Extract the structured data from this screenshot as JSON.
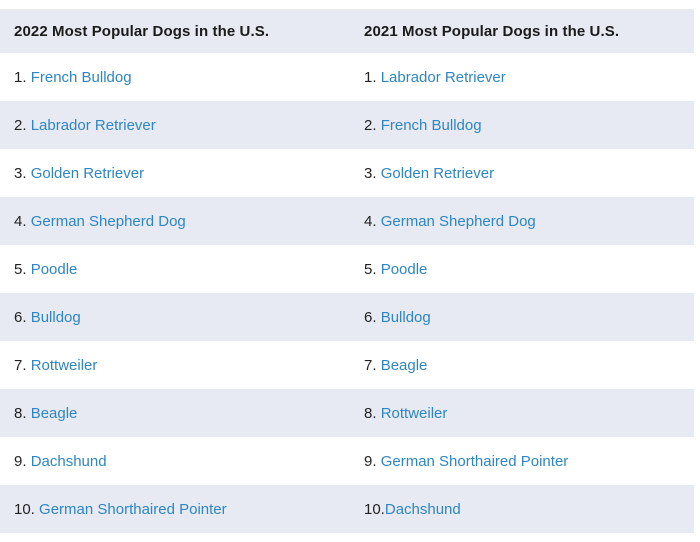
{
  "table": {
    "columns": [
      {
        "title": "2022 Most Popular Dogs in the U.S."
      },
      {
        "title": "2021 Most Popular Dogs in the U.S."
      }
    ],
    "rows": [
      {
        "left_num": "1. ",
        "left_breed": "French Bulldog",
        "right_num": "1. ",
        "right_breed": "Labrador Retriever"
      },
      {
        "left_num": "2. ",
        "left_breed": "Labrador Retriever",
        "right_num": "2. ",
        "right_breed": "French Bulldog"
      },
      {
        "left_num": "3. ",
        "left_breed": "Golden Retriever",
        "right_num": "3. ",
        "right_breed": "Golden Retriever"
      },
      {
        "left_num": "4. ",
        "left_breed": "German Shepherd Dog",
        "right_num": "4. ",
        "right_breed": "German Shepherd Dog"
      },
      {
        "left_num": "5. ",
        "left_breed": "Poodle",
        "right_num": "5. ",
        "right_breed": "Poodle"
      },
      {
        "left_num": "6. ",
        "left_breed": "Bulldog",
        "right_num": "6. ",
        "right_breed": "Bulldog"
      },
      {
        "left_num": "7. ",
        "left_breed": "Rottweiler",
        "right_num": "7. ",
        "right_breed": "Beagle"
      },
      {
        "left_num": "8. ",
        "left_breed": "Beagle",
        "right_num": "8. ",
        "right_breed": "Rottweiler"
      },
      {
        "left_num": "9. ",
        "left_breed": "Dachshund",
        "right_num": "9. ",
        "right_breed": "German Shorthaired Pointer"
      },
      {
        "left_num": "10. ",
        "left_breed": "German Shorthaired Pointer",
        "right_num": "10.",
        "right_breed": "Dachshund"
      }
    ],
    "colors": {
      "stripe_bg": "#e7eaf3",
      "link": "#2e86c3",
      "header_text": "#1b1b1b",
      "number_text": "#222222"
    }
  },
  "chart_data": {
    "type": "table",
    "title": "Most Popular Dogs in the U.S. (2022 vs 2021)",
    "columns": [
      "2022 Most Popular Dogs in the U.S.",
      "2021 Most Popular Dogs in the U.S."
    ],
    "ranks": [
      1,
      2,
      3,
      4,
      5,
      6,
      7,
      8,
      9,
      10
    ],
    "series": [
      {
        "name": "2022 Most Popular Dogs in the U.S.",
        "values": [
          "French Bulldog",
          "Labrador Retriever",
          "Golden Retriever",
          "German Shepherd Dog",
          "Poodle",
          "Bulldog",
          "Rottweiler",
          "Beagle",
          "Dachshund",
          "German Shorthaired Pointer"
        ]
      },
      {
        "name": "2021 Most Popular Dogs in the U.S.",
        "values": [
          "Labrador Retriever",
          "French Bulldog",
          "Golden Retriever",
          "German Shepherd Dog",
          "Poodle",
          "Bulldog",
          "Beagle",
          "Rottweiler",
          "German Shorthaired Pointer",
          "Dachshund"
        ]
      }
    ],
    "layout": {
      "striped_rows": true,
      "header_background": "#e7eaf3",
      "link_color": "#2e86c3"
    }
  }
}
